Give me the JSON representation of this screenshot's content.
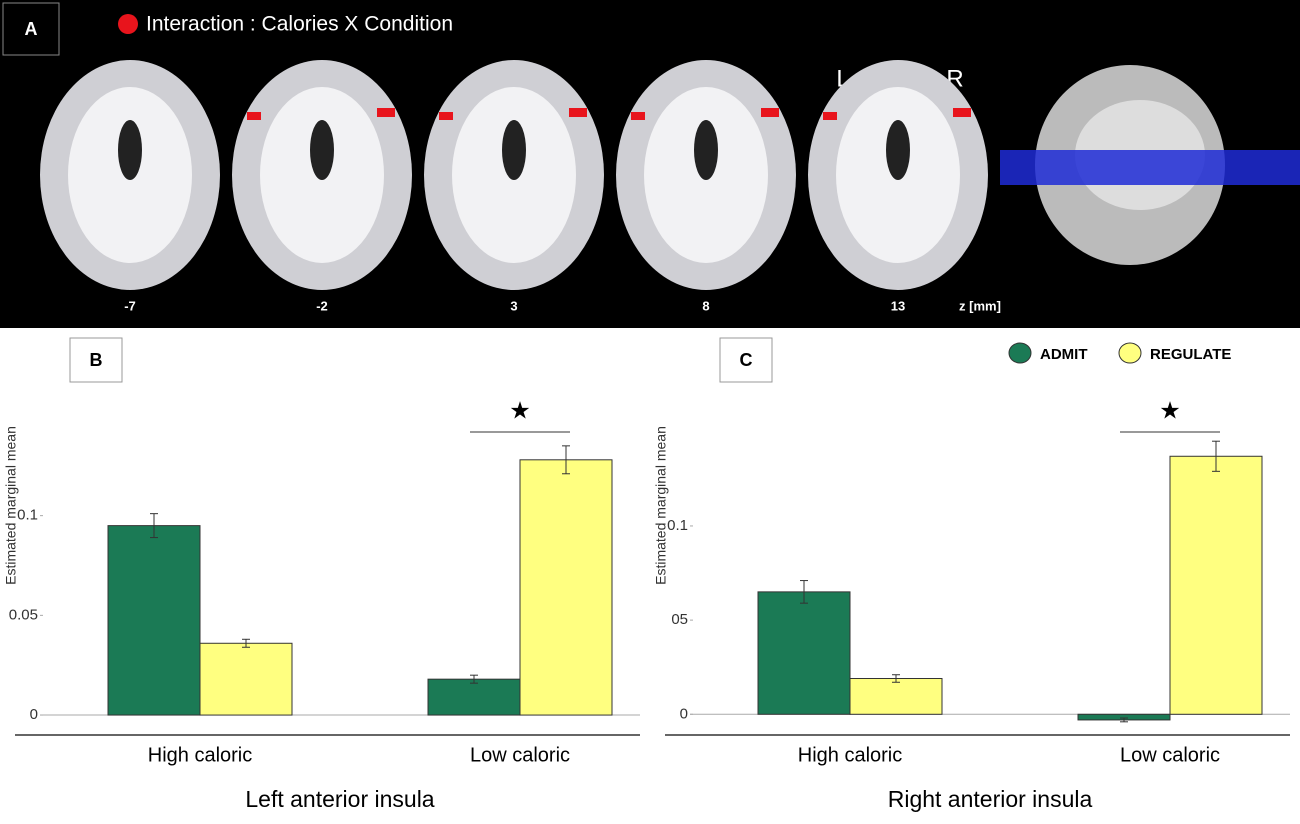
{
  "panel_a": {
    "label": "A",
    "legend": "Interaction : Calories X Condition",
    "left": "L",
    "right": "R",
    "slices": [
      -7,
      -2,
      3,
      8,
      13
    ],
    "z_unit": "z [mm]"
  },
  "chart_data": [
    {
      "type": "bar",
      "panel": "B",
      "ylabel": "Estimated marginal mean",
      "xlabel": "Left anterior insula",
      "categories": [
        "High caloric",
        "Low caloric"
      ],
      "series": [
        {
          "color": "#1b7a55",
          "values": [
            0.095,
            0.018
          ],
          "errors": [
            0.006,
            0.002
          ]
        },
        {
          "color": "#ffff80",
          "values": [
            0.036,
            0.128
          ],
          "errors": [
            0.002,
            0.007
          ]
        }
      ],
      "ylim": [
        -0.01,
        0.16
      ],
      "yticks": [
        0,
        0.05,
        0.1
      ],
      "significance_label": "★"
    },
    {
      "type": "bar",
      "panel": "C",
      "ylabel": "Estimated marginal mean",
      "xlabel": "Right anterior insula",
      "categories": [
        "High caloric",
        "Low caloric"
      ],
      "series": [
        {
          "name": "ADMIT",
          "color": "#1b7a55",
          "values": [
            0.065,
            -0.003
          ],
          "errors": [
            0.006,
            0.001
          ]
        },
        {
          "name": "REGULATE",
          "color": "#ffff80",
          "values": [
            0.019,
            0.137
          ],
          "errors": [
            0.002,
            0.008
          ]
        }
      ],
      "ylim": [
        -0.011,
        0.169
      ],
      "yticks": [
        0,
        {
          "value": 0.05,
          "label": "05"
        },
        0.1
      ],
      "legend": "top-right",
      "significance_label": "★"
    }
  ]
}
